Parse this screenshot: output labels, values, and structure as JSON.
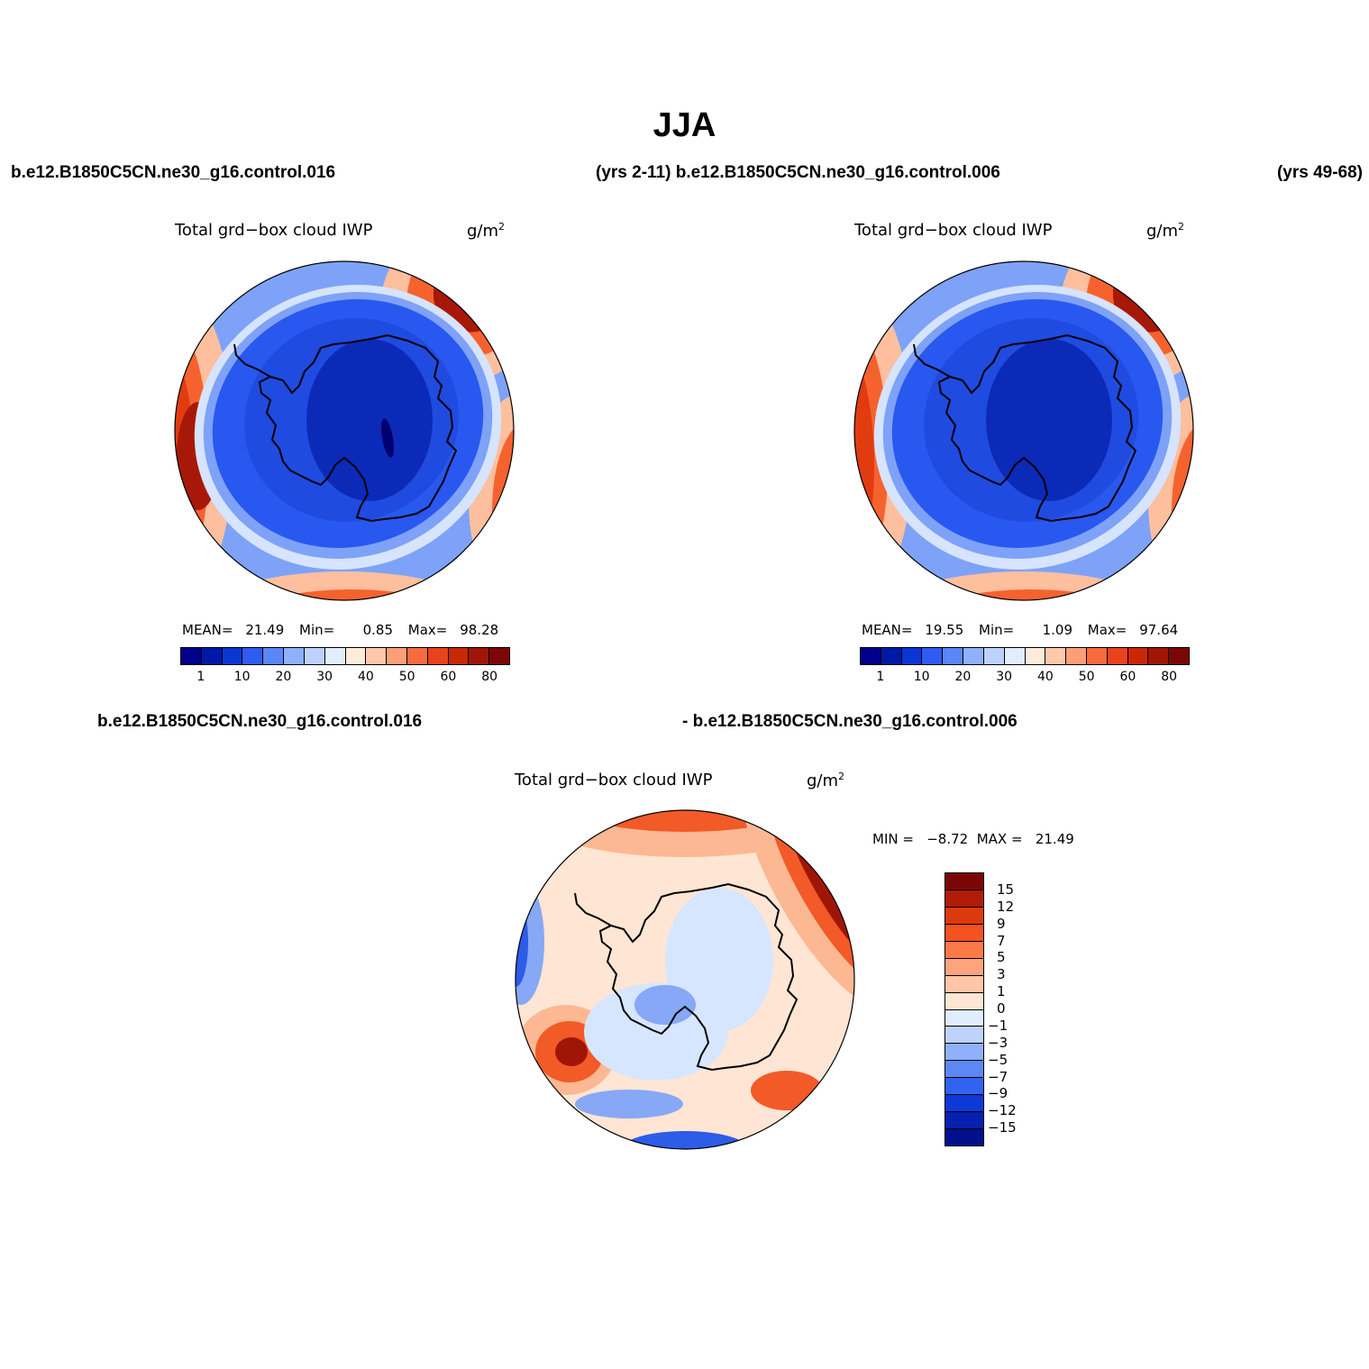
{
  "figure": {
    "title": "JJA",
    "case1": "b.e12.B1850C5CN.ne30_g16.control.016",
    "case1_years": "(yrs 2-11)",
    "case2": "b.e12.B1850C5CN.ne30_g16.control.006",
    "case2_years": "(yrs 49-68)",
    "diff_left": "b.e12.B1850C5CN.ne30_g16.control.016",
    "diff_right": "- b.e12.B1850C5CN.ne30_g16.control.006"
  },
  "panels": [
    {
      "title": "Total grd−box cloud IWP",
      "units_base": "g/m",
      "units_exp": "2",
      "mean_label": "MEAN=",
      "mean": "21.49",
      "min_label": "Min=",
      "min": "0.85",
      "max_label": "Max=",
      "max": "98.28"
    },
    {
      "title": "Total grd−box cloud IWP",
      "units_base": "g/m",
      "units_exp": "2",
      "mean_label": "MEAN=",
      "mean": "19.55",
      "min_label": "Min=",
      "min": "1.09",
      "max_label": "Max=",
      "max": "97.64"
    },
    {
      "title": "Total grd−box cloud IWP",
      "units_base": "g/m",
      "units_exp": "2",
      "minmax": "MIN =   −8.72  MAX =   21.49"
    }
  ],
  "colorbar_abs": {
    "colors": [
      "#00008b",
      "#0018a8",
      "#0a36d4",
      "#2f5cf0",
      "#5a86f7",
      "#8fb0fa",
      "#bcd2fd",
      "#e2edff",
      "#ffebdc",
      "#ffc8ab",
      "#fd9e78",
      "#f86b3e",
      "#e8431b",
      "#c82806",
      "#a01606",
      "#7c0606"
    ],
    "labels": [
      "1",
      "10",
      "20",
      "30",
      "40",
      "50",
      "60",
      "80"
    ]
  },
  "colorbar_diff": {
    "colors": [
      "#7c0606",
      "#b01c06",
      "#dc3a0c",
      "#f4521e",
      "#fb7a48",
      "#fda47e",
      "#ffc6a8",
      "#ffe5d4",
      "#e0ecff",
      "#bed2fc",
      "#90b0fa",
      "#5c88f6",
      "#3262f0",
      "#0c3ad8",
      "#0620b0",
      "#00108c"
    ],
    "labels": [
      "15",
      "12",
      "9",
      "7",
      "5",
      "3",
      "1",
      "0",
      "−1",
      "−3",
      "−5",
      "−7",
      "−9",
      "−12",
      "−15"
    ]
  },
  "map_colors": {
    "ice_core": "#0c2ab8",
    "ice": "#1f4be0",
    "ocean_low": "#2958f0",
    "ring1": "#7ea2f8",
    "ring2": "#d6e4ff",
    "warm1": "#fdbf9e",
    "warm2": "#f6622e",
    "warm3": "#e03c10",
    "warm4": "#a81808",
    "warm5": "#7c0606",
    "diff_bg": "#ffe5d4",
    "diff_pale_blue": "#d7e6ff",
    "diff_blue": "#87a8f6",
    "diff_dark_blue": "#2d5ce8",
    "diff_light_red": "#fcb892",
    "diff_red": "#f25a28",
    "diff_dark_red": "#a01606"
  }
}
